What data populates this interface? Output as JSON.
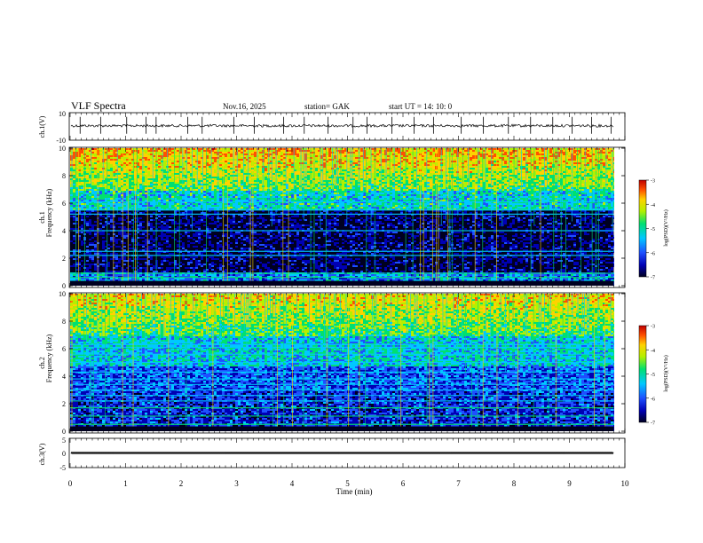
{
  "header": {
    "title": "VLF  Spectra",
    "date": "Nov.16, 2025",
    "station": "station= GAK",
    "start": "start  UT  =    14: 10: 0"
  },
  "chart_data": [
    {
      "type": "line",
      "ylabel": "ch.1(V)",
      "ylim": [
        -10,
        10
      ],
      "yticks": [
        "10",
        "-10"
      ],
      "xlim": [
        0,
        10
      ],
      "baseline": 0.5,
      "spike_times": [
        0.18,
        0.55,
        1.02,
        1.37,
        1.55,
        2.12,
        2.38,
        2.95,
        3.32,
        3.85,
        4.22,
        4.65,
        5.1,
        5.35,
        5.8,
        6.2,
        6.55,
        7.05,
        7.45,
        7.9,
        8.3,
        8.7,
        9.05,
        9.4,
        9.75
      ]
    },
    {
      "type": "heatmap",
      "ylabel_top": "ch.1",
      "ylabel": "Frequency  (kHz)",
      "ylim": [
        0,
        10
      ],
      "yticks": [
        "0",
        "2",
        "4",
        "6",
        "8",
        "10"
      ],
      "xlim": [
        0,
        9.8
      ],
      "dark_band_khz": [
        1.0,
        5.3
      ],
      "line_khz": [
        0.3,
        0.6,
        0.9,
        2.2,
        2.5,
        4.0,
        5.2,
        5.5,
        6.1
      ],
      "colorbar": {
        "label": "log(PSD)(V²/Hz)",
        "ticks": [
          "-3",
          "-4",
          "-5",
          "-6",
          "-7"
        ],
        "range": [
          -7,
          -3
        ]
      }
    },
    {
      "type": "heatmap",
      "ylabel_top": "ch.2",
      "ylabel": "Frequency  (kHz)",
      "ylim": [
        0,
        10
      ],
      "yticks": [
        "0",
        "2",
        "4",
        "6",
        "8",
        "10"
      ],
      "xlim": [
        0,
        9.8
      ],
      "line_khz": [
        0.5,
        1.1,
        1.7,
        2.2,
        2.6,
        3.0,
        3.4,
        3.8,
        4.3,
        5.0,
        5.6,
        6.1,
        6.3
      ],
      "colorbar": {
        "label": "log(PSD)(V²/Hz)",
        "ticks": [
          "-3",
          "-4",
          "-5",
          "-6",
          "-7"
        ],
        "range": [
          -7,
          -3
        ]
      }
    },
    {
      "type": "line",
      "ylabel": "ch.3(V)",
      "ylim": [
        -5,
        5
      ],
      "yticks": [
        "5",
        "0",
        "-5"
      ],
      "xlim": [
        0,
        9.8
      ],
      "baseline": 0
    }
  ],
  "xaxis": {
    "label": "Time  (min)",
    "ticks": [
      "0",
      "1",
      "2",
      "3",
      "4",
      "5",
      "6",
      "7",
      "8",
      "9",
      "10"
    ],
    "range": [
      0,
      10
    ]
  },
  "colors": {
    "scale": [
      "#000020",
      "#0000b4",
      "#1e50ff",
      "#00c8ff",
      "#00e070",
      "#b4f000",
      "#ffd200",
      "#ff5000",
      "#c00000"
    ]
  }
}
